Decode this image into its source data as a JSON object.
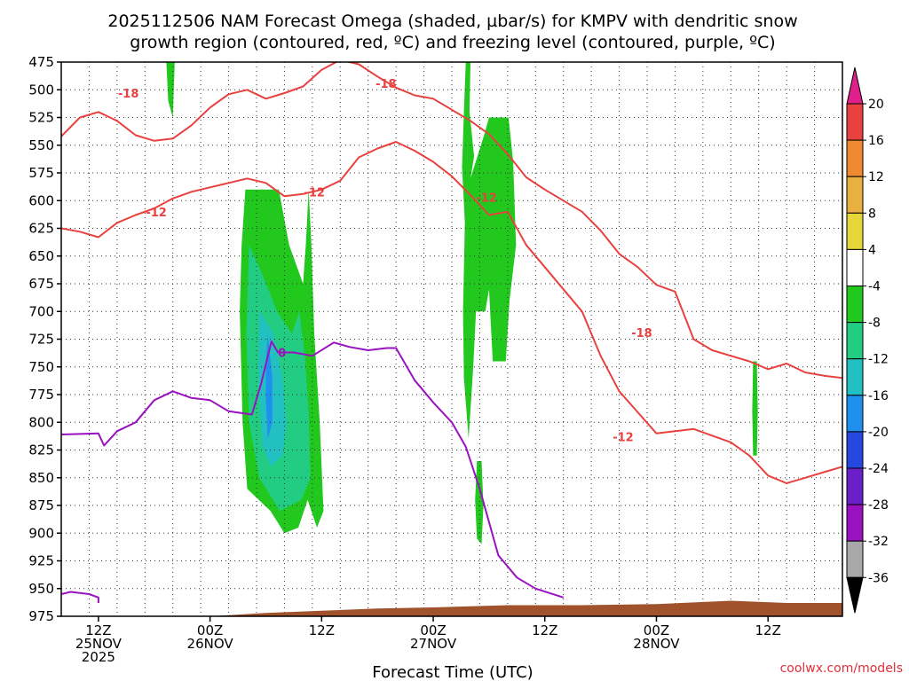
{
  "chart_data": {
    "type": "time-height cross-section",
    "title_lines": [
      "2025112506 NAM Forecast Omega (shaded, µbar/s) for KMPV with dendritic snow",
      "growth region (contoured, red, ºC) and freezing level (contoured, purple, ºC)"
    ],
    "xlabel": "Forecast Time (UTC)",
    "credit": "coolwx.com/models",
    "x_range_hours": [
      -4,
      80
    ],
    "y_range_hPa": [
      475,
      975
    ],
    "y_ticks": [
      475,
      500,
      525,
      550,
      575,
      600,
      625,
      650,
      675,
      700,
      725,
      750,
      775,
      800,
      825,
      850,
      875,
      900,
      925,
      950,
      975
    ],
    "x_ticks": [
      {
        "hour": 0,
        "lines": [
          "12Z",
          "25NOV",
          "2025"
        ]
      },
      {
        "hour": 12,
        "lines": [
          "00Z",
          "26NOV"
        ]
      },
      {
        "hour": 24,
        "lines": [
          "12Z"
        ]
      },
      {
        "hour": 36,
        "lines": [
          "00Z",
          "27NOV"
        ]
      },
      {
        "hour": 48,
        "lines": [
          "12Z"
        ]
      },
      {
        "hour": 60,
        "lines": [
          "00Z",
          "28NOV"
        ]
      },
      {
        "hour": 72,
        "lines": [
          "12Z"
        ]
      }
    ],
    "colorbar": {
      "levels": [
        20,
        16,
        12,
        8,
        4,
        -4,
        -8,
        -12,
        -16,
        -20,
        -24,
        -28,
        -32,
        -36
      ],
      "bands": [
        {
          "color": "#e8413f"
        },
        {
          "color": "#f08a30"
        },
        {
          "color": "#e8b040"
        },
        {
          "color": "#e6d63a"
        },
        {
          "color": "#ffffff"
        },
        {
          "color": "#22c81e"
        },
        {
          "color": "#22cc82"
        },
        {
          "color": "#22c0c0"
        },
        {
          "color": "#2090ee"
        },
        {
          "color": "#2448e0"
        },
        {
          "color": "#6a20c8"
        },
        {
          "color": "#9a12c0"
        },
        {
          "color": "#a8a8a8"
        }
      ],
      "top_arrow_color": "#e0208a",
      "bottom_arrow_color": "#000000"
    },
    "colors": {
      "red_contour": "#e8413f",
      "purple_contour": "#9a12c0",
      "terrain": "#a0522d",
      "green": "#22c81e",
      "teal": "#22cc82",
      "cyan": "#22c0c0",
      "blue": "#2090ee"
    },
    "omega_regions": [
      {
        "color": "#22c81e",
        "points": [
          [
            7.3,
            475
          ],
          [
            8.2,
            475
          ],
          [
            8.0,
            525
          ],
          [
            7.5,
            510
          ]
        ]
      },
      {
        "color": "#22c81e",
        "points": [
          [
            15.8,
            590
          ],
          [
            19.4,
            590
          ],
          [
            20.5,
            640
          ],
          [
            22,
            675
          ],
          [
            22.3,
            640
          ],
          [
            22.6,
            590
          ],
          [
            22.9,
            640
          ],
          [
            23.2,
            720
          ],
          [
            23.8,
            800
          ],
          [
            24.2,
            880
          ],
          [
            23.5,
            895
          ],
          [
            22.5,
            870
          ],
          [
            21.5,
            895
          ],
          [
            20,
            900
          ],
          [
            18.5,
            880
          ],
          [
            16,
            860
          ],
          [
            15.5,
            800
          ],
          [
            15.2,
            700
          ],
          [
            15.4,
            640
          ]
        ]
      },
      {
        "color": "#22cc82",
        "points": [
          [
            16.2,
            640
          ],
          [
            17.8,
            670
          ],
          [
            19.2,
            700
          ],
          [
            20.8,
            720
          ],
          [
            21.6,
            700
          ],
          [
            22.2,
            740
          ],
          [
            22.6,
            790
          ],
          [
            22.8,
            850
          ],
          [
            21.8,
            870
          ],
          [
            19.5,
            880
          ],
          [
            17.3,
            850
          ],
          [
            16.2,
            800
          ],
          [
            15.9,
            720
          ]
        ]
      },
      {
        "color": "#22c0c0",
        "points": [
          [
            17.3,
            700
          ],
          [
            18.8,
            720
          ],
          [
            19.8,
            760
          ],
          [
            20.2,
            800
          ],
          [
            19.8,
            830
          ],
          [
            18.5,
            840
          ],
          [
            17.6,
            820
          ],
          [
            17.2,
            760
          ]
        ]
      },
      {
        "color": "#2090ee",
        "points": [
          [
            18.2,
            720
          ],
          [
            18.7,
            760
          ],
          [
            18.7,
            800
          ],
          [
            18.2,
            815
          ],
          [
            18,
            780
          ],
          [
            18,
            745
          ]
        ]
      },
      {
        "color": "#22c81e",
        "points": [
          [
            39.5,
            475
          ],
          [
            40.0,
            475
          ],
          [
            39.9,
            520
          ],
          [
            40.4,
            560
          ],
          [
            40.0,
            580
          ],
          [
            41.5,
            540
          ],
          [
            42.0,
            525
          ],
          [
            44.1,
            525
          ],
          [
            44.6,
            565
          ],
          [
            44.9,
            640
          ],
          [
            44.2,
            690
          ],
          [
            43.8,
            745
          ],
          [
            42.4,
            745
          ],
          [
            42,
            680
          ],
          [
            41.6,
            700
          ],
          [
            40.6,
            700
          ],
          [
            40.3,
            750
          ],
          [
            39.8,
            815
          ],
          [
            39.3,
            760
          ],
          [
            39.2,
            700
          ],
          [
            39.4,
            620
          ],
          [
            39.1,
            570
          ],
          [
            39.3,
            520
          ]
        ]
      },
      {
        "color": "#22c81e",
        "points": [
          [
            40.7,
            835
          ],
          [
            41.2,
            835
          ],
          [
            41.4,
            875
          ],
          [
            41.2,
            910
          ],
          [
            40.7,
            905
          ],
          [
            40.5,
            870
          ]
        ]
      },
      {
        "color": "#22c81e",
        "points": [
          [
            70.4,
            745
          ],
          [
            70.8,
            745
          ],
          [
            70.9,
            790
          ],
          [
            70.8,
            830
          ],
          [
            70.4,
            830
          ],
          [
            70.3,
            790
          ]
        ]
      }
    ],
    "terrain_line": [
      [
        -4,
        982
      ],
      [
        -2,
        980
      ],
      [
        6,
        978
      ],
      [
        12,
        975
      ],
      [
        18,
        972
      ],
      [
        24,
        970
      ],
      [
        30,
        968
      ],
      [
        36,
        967
      ],
      [
        40,
        966
      ],
      [
        44,
        965
      ],
      [
        52,
        965
      ],
      [
        60,
        964
      ],
      [
        68,
        961
      ],
      [
        74,
        963
      ],
      [
        80,
        963
      ]
    ],
    "freezing_level": [
      {
        "label": "0",
        "label_at": [
          19.3,
          737
        ],
        "points": [
          [
            -4,
            811
          ],
          [
            0,
            810
          ],
          [
            0.6,
            821
          ],
          [
            2,
            808
          ],
          [
            4,
            800
          ],
          [
            6,
            780
          ],
          [
            8,
            772
          ],
          [
            10,
            778
          ],
          [
            12,
            780
          ],
          [
            14,
            790
          ],
          [
            16.5,
            793
          ],
          [
            17.5,
            765
          ],
          [
            18.6,
            727
          ],
          [
            19.3,
            737
          ],
          [
            21,
            737
          ],
          [
            23,
            740
          ],
          [
            25.3,
            728
          ],
          [
            27,
            732
          ],
          [
            29,
            735
          ],
          [
            31,
            733
          ],
          [
            32,
            733
          ],
          [
            34,
            762
          ],
          [
            36,
            782
          ],
          [
            38,
            800
          ],
          [
            39.5,
            822
          ],
          [
            41,
            860
          ],
          [
            42,
            890
          ],
          [
            43,
            920
          ],
          [
            45,
            940
          ],
          [
            47,
            950
          ],
          [
            50,
            958
          ]
        ]
      },
      {
        "label": "",
        "points": [
          [
            -4,
            955
          ],
          [
            -3,
            953
          ],
          [
            -1,
            955
          ],
          [
            0,
            958
          ],
          [
            0,
            963
          ]
        ]
      }
    ],
    "dgz_contours": [
      {
        "level": -18,
        "label": "-18",
        "label_at": [
          2.1,
          503
        ],
        "points": [
          [
            -4,
            542
          ],
          [
            -2,
            525
          ],
          [
            0,
            520
          ],
          [
            2,
            528
          ],
          [
            4,
            541
          ],
          [
            6,
            546
          ],
          [
            8,
            544
          ],
          [
            10,
            532
          ],
          [
            12,
            516
          ],
          [
            14,
            504
          ],
          [
            16,
            500
          ],
          [
            18,
            508
          ],
          [
            20,
            503
          ],
          [
            22,
            497
          ],
          [
            24,
            482
          ],
          [
            26,
            473
          ],
          [
            28,
            477
          ],
          [
            30,
            488
          ],
          [
            32,
            498
          ],
          [
            34,
            505
          ],
          [
            36,
            508
          ],
          [
            38,
            518
          ],
          [
            40,
            528
          ],
          [
            42,
            540
          ],
          [
            44,
            558
          ],
          [
            46,
            579
          ],
          [
            48,
            590
          ],
          [
            50,
            600
          ],
          [
            52,
            610
          ],
          [
            54,
            627
          ],
          [
            56,
            648
          ],
          [
            58,
            660
          ],
          [
            60,
            676
          ],
          [
            62,
            682
          ],
          [
            64,
            725
          ],
          [
            66,
            735
          ],
          [
            68,
            740
          ],
          [
            70,
            745
          ],
          [
            72,
            752
          ],
          [
            74,
            747
          ],
          [
            76,
            755
          ],
          [
            78,
            758
          ],
          [
            80,
            760
          ]
        ]
      },
      {
        "level": -18,
        "label": "-18",
        "label_at": [
          29.8,
          494
        ],
        "points": []
      },
      {
        "level": -18,
        "label": "-18",
        "label_at": [
          57.3,
          719
        ],
        "points": []
      },
      {
        "level": -12,
        "label": "-12",
        "label_at": [
          5.1,
          610
        ],
        "points": [
          [
            -4,
            625
          ],
          [
            -2,
            628
          ],
          [
            0,
            633
          ],
          [
            2,
            620
          ],
          [
            4,
            613
          ],
          [
            6,
            607
          ],
          [
            8,
            598
          ],
          [
            10,
            592
          ],
          [
            12,
            588
          ],
          [
            14,
            584
          ],
          [
            16,
            580
          ],
          [
            18,
            584
          ],
          [
            20,
            596
          ],
          [
            22,
            594
          ],
          [
            24,
            590
          ],
          [
            26,
            582
          ],
          [
            28,
            561
          ],
          [
            30,
            553
          ],
          [
            32,
            547
          ],
          [
            34,
            555
          ],
          [
            36,
            565
          ],
          [
            38,
            578
          ],
          [
            40,
            595
          ],
          [
            42,
            613
          ],
          [
            44,
            610
          ],
          [
            46,
            640
          ],
          [
            48,
            660
          ],
          [
            50,
            680
          ],
          [
            52,
            700
          ],
          [
            54,
            740
          ],
          [
            56,
            772
          ],
          [
            58,
            791
          ],
          [
            60,
            810
          ],
          [
            62,
            808
          ],
          [
            64,
            806
          ],
          [
            66,
            812
          ],
          [
            68,
            818
          ],
          [
            70,
            830
          ],
          [
            72,
            848
          ],
          [
            74,
            855
          ],
          [
            76,
            850
          ],
          [
            78,
            845
          ],
          [
            80,
            840
          ]
        ]
      },
      {
        "level": -12,
        "label": "-12",
        "label_at": [
          22.1,
          592
        ],
        "points": []
      },
      {
        "level": -12,
        "label": "-12",
        "label_at": [
          40.6,
          597
        ],
        "points": []
      },
      {
        "level": -12,
        "label": "-12",
        "label_at": [
          55.3,
          813
        ],
        "points": []
      }
    ]
  }
}
